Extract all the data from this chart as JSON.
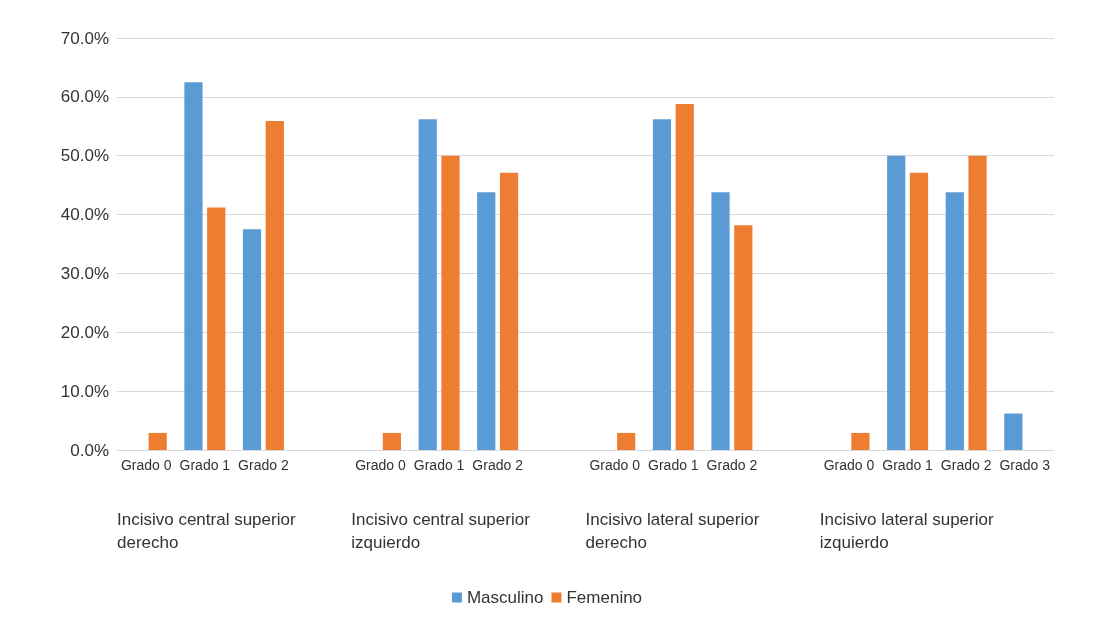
{
  "chart_data": {
    "type": "bar",
    "categories": [
      "Grado 0",
      "Grado 1",
      "Grado 2",
      null,
      "Grado 0",
      "Grado 1",
      "Grado 2",
      null,
      "Grado 0",
      "Grado 1",
      "Grado 2",
      null,
      "Grado 0",
      "Grado 1",
      "Grado 2",
      "Grado 3"
    ],
    "series": [
      {
        "name": "Masculino",
        "color": "#5b9bd5",
        "values": [
          0,
          62.5,
          37.5,
          null,
          0,
          56.2,
          43.8,
          null,
          0,
          56.2,
          43.8,
          null,
          0,
          50.0,
          43.8,
          6.2
        ]
      },
      {
        "name": "Femenino",
        "color": "#ed7d31",
        "values": [
          2.9,
          41.2,
          55.9,
          null,
          2.9,
          50.0,
          47.1,
          null,
          2.9,
          58.8,
          38.2,
          null,
          2.9,
          47.1,
          50.0,
          null
        ]
      }
    ],
    "annotations": [
      "Incisivo central superior derecho",
      "Incisivo central superior izquierdo",
      "Incisivo lateral superior derecho",
      "Incisivo lateral superior izquierdo"
    ],
    "ylim": [
      0,
      70
    ],
    "yticks": [
      {
        "value": 0,
        "label": "0.0%"
      },
      {
        "value": 10,
        "label": "10.0%"
      },
      {
        "value": 20,
        "label": "20.0%"
      },
      {
        "value": 30,
        "label": "30.0%"
      },
      {
        "value": 40,
        "label": "40.0%"
      },
      {
        "value": 50,
        "label": "50.0%"
      },
      {
        "value": 60,
        "label": "60.0%"
      },
      {
        "value": 70,
        "label": "70.0%"
      }
    ],
    "grid": "y",
    "legend": "bottom"
  }
}
